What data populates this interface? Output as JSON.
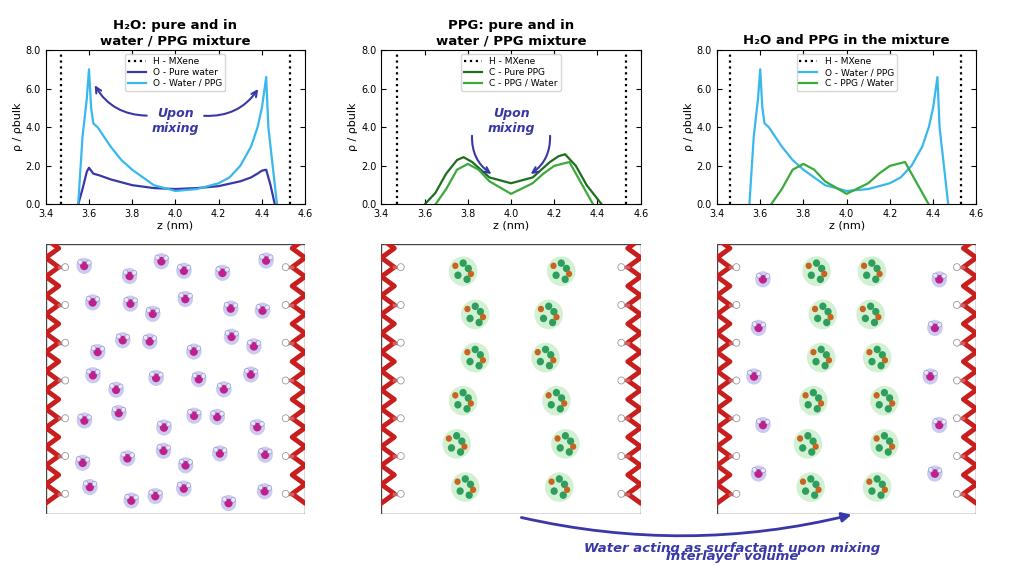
{
  "chart_data": [
    {
      "type": "line",
      "title": "H₂O: pure and in\nwater / PPG mixture",
      "x_label": "z (nm)",
      "y_label": "ρ / ρbulk",
      "xlim": [
        3.4,
        4.6
      ],
      "xticks": [
        3.4,
        3.6,
        3.8,
        4.0,
        4.2,
        4.4,
        4.6
      ],
      "ylim": [
        0,
        8
      ],
      "yticks": [
        {
          "value": 0,
          "label": "0.0"
        },
        {
          "value": 2,
          "label": "2.0"
        },
        {
          "value": 4,
          "label": "4.0"
        },
        {
          "value": 6,
          "label": "6.0"
        },
        {
          "value": 8,
          "label": "8.0"
        }
      ],
      "legend": "upper center",
      "annotations": [
        {
          "text": "Upon\nmixing"
        }
      ],
      "series": [
        {
          "name": "H - MXene",
          "type": "vline",
          "color": "#000000",
          "line_style": "dotted",
          "values": [
            3.47,
            4.53
          ]
        },
        {
          "name": "O - Pure water",
          "color": "#3838a8",
          "line_style": "solid",
          "x": [
            3.55,
            3.57,
            3.59,
            3.6,
            3.62,
            3.65,
            3.7,
            3.8,
            3.9,
            4.0,
            4.1,
            4.2,
            4.3,
            4.35,
            4.38,
            4.4,
            4.42,
            4.44,
            4.46
          ],
          "values": [
            0,
            0.8,
            1.7,
            1.9,
            1.6,
            1.5,
            1.3,
            1.0,
            0.85,
            0.8,
            0.85,
            0.95,
            1.2,
            1.4,
            1.6,
            1.75,
            1.8,
            1.0,
            0
          ]
        },
        {
          "name": "O - Water / PPG",
          "color": "#38b8ec",
          "line_style": "solid",
          "x": [
            3.55,
            3.57,
            3.59,
            3.6,
            3.61,
            3.62,
            3.64,
            3.67,
            3.7,
            3.75,
            3.8,
            3.9,
            4.0,
            4.1,
            4.2,
            4.25,
            4.3,
            4.35,
            4.38,
            4.4,
            4.42,
            4.43,
            4.45,
            4.47
          ],
          "values": [
            0,
            3.5,
            5.5,
            7.0,
            5.0,
            4.2,
            4.0,
            3.5,
            3.0,
            2.3,
            1.8,
            1.0,
            0.7,
            0.8,
            1.1,
            1.4,
            2.0,
            3.0,
            4.0,
            5.0,
            6.6,
            4.0,
            2.0,
            0
          ]
        }
      ]
    },
    {
      "type": "line",
      "title": "PPG: pure and in\nwater / PPG mixture",
      "x_label": "z (nm)",
      "y_label": "ρ / ρbulk",
      "xlim": [
        3.4,
        4.6
      ],
      "xticks": [
        3.4,
        3.6,
        3.8,
        4.0,
        4.2,
        4.4,
        4.6
      ],
      "ylim": [
        0,
        8
      ],
      "yticks": [
        {
          "value": 0,
          "label": "0.0"
        },
        {
          "value": 2,
          "label": "2.0"
        },
        {
          "value": 4,
          "label": "4.0"
        },
        {
          "value": 6,
          "label": "6.0"
        },
        {
          "value": 8,
          "label": "8.0"
        }
      ],
      "legend": "upper center",
      "annotations": [
        {
          "text": "Upon\nmixing"
        }
      ],
      "series": [
        {
          "name": "H - MXene",
          "type": "vline",
          "color": "#000000",
          "line_style": "dotted",
          "values": [
            3.47,
            4.53
          ]
        },
        {
          "name": "C - Pure PPG",
          "color": "#1e6e1e",
          "line_style": "solid",
          "x": [
            3.6,
            3.65,
            3.7,
            3.75,
            3.78,
            3.82,
            3.9,
            4.0,
            4.1,
            4.18,
            4.22,
            4.25,
            4.3,
            4.35,
            4.42
          ],
          "values": [
            0,
            0.6,
            1.6,
            2.3,
            2.45,
            2.2,
            1.4,
            1.1,
            1.4,
            2.2,
            2.5,
            2.6,
            2.0,
            1.0,
            0
          ]
        },
        {
          "name": "C - PPG / Water",
          "color": "#3aaa3a",
          "line_style": "solid",
          "x": [
            3.65,
            3.7,
            3.75,
            3.8,
            3.85,
            3.9,
            4.0,
            4.1,
            4.15,
            4.2,
            4.27,
            4.32,
            4.38
          ],
          "values": [
            0,
            0.8,
            1.8,
            2.1,
            1.8,
            1.2,
            0.55,
            1.1,
            1.6,
            2.0,
            2.2,
            1.2,
            0
          ]
        }
      ]
    },
    {
      "type": "line",
      "title": "H₂O and PPG in the mixture",
      "x_label": "z (nm)",
      "y_label": "ρ / ρbulk",
      "xlim": [
        3.4,
        4.6
      ],
      "xticks": [
        3.4,
        3.6,
        3.8,
        4.0,
        4.2,
        4.4,
        4.6
      ],
      "ylim": [
        0,
        8
      ],
      "yticks": [
        {
          "value": 0,
          "label": "0.0"
        },
        {
          "value": 2,
          "label": "2.0"
        },
        {
          "value": 4,
          "label": "4.0"
        },
        {
          "value": 6,
          "label": "6.0"
        },
        {
          "value": 8,
          "label": "8.0"
        }
      ],
      "legend": "upper center",
      "series": [
        {
          "name": "H - MXene",
          "type": "vline",
          "color": "#000000",
          "line_style": "dotted",
          "values": [
            3.46,
            4.53
          ]
        },
        {
          "name": "O - Water / PPG",
          "color": "#38b8ec",
          "line_style": "solid",
          "x": [
            3.55,
            3.57,
            3.59,
            3.6,
            3.61,
            3.62,
            3.64,
            3.67,
            3.7,
            3.75,
            3.8,
            3.9,
            4.0,
            4.1,
            4.2,
            4.25,
            4.3,
            4.35,
            4.38,
            4.4,
            4.42,
            4.43,
            4.45,
            4.47
          ],
          "values": [
            0,
            3.5,
            5.5,
            7.0,
            5.0,
            4.2,
            4.0,
            3.5,
            3.0,
            2.3,
            1.8,
            1.0,
            0.7,
            0.8,
            1.1,
            1.4,
            2.0,
            3.0,
            4.0,
            5.0,
            6.6,
            4.0,
            2.0,
            0
          ]
        },
        {
          "name": "C - PPG / Water",
          "color": "#3aaa3a",
          "line_style": "solid",
          "x": [
            3.65,
            3.7,
            3.75,
            3.8,
            3.85,
            3.9,
            4.0,
            4.1,
            4.15,
            4.2,
            4.27,
            4.32,
            4.38
          ],
          "values": [
            0,
            0.8,
            1.8,
            2.1,
            1.8,
            1.2,
            0.55,
            1.1,
            1.6,
            2.0,
            2.2,
            1.2,
            0
          ]
        }
      ]
    }
  ],
  "figure_texts": [
    "Water acting as surfactant upon mixing",
    "Interlayer volume"
  ]
}
